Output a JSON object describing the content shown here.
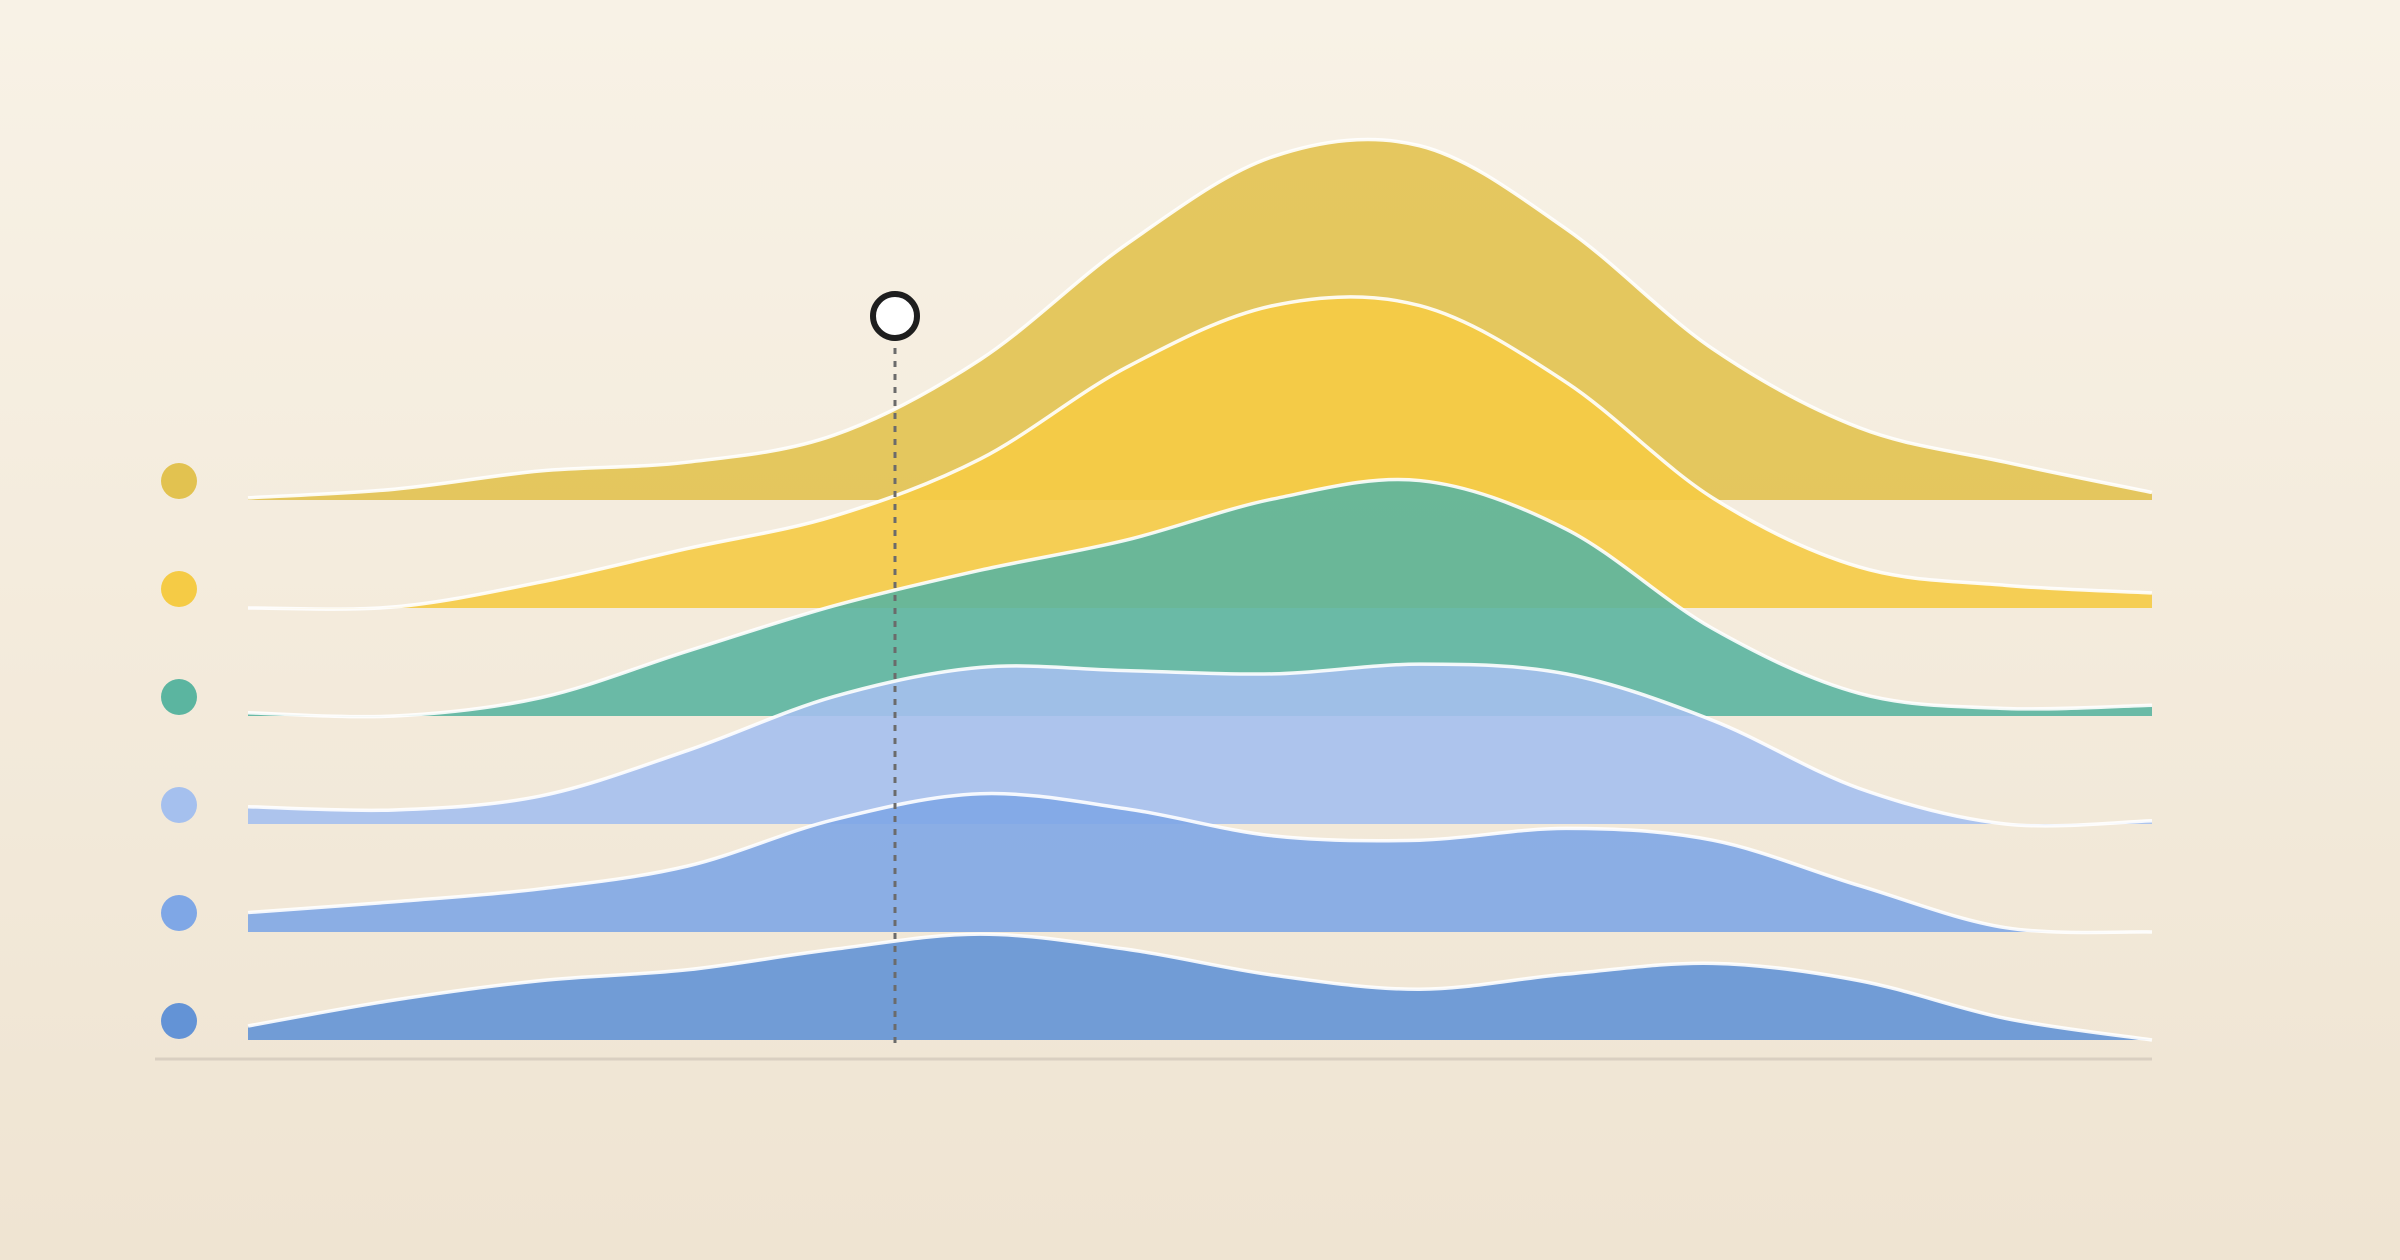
{
  "chart_data": {
    "type": "ridgeline",
    "x": [
      0,
      1,
      2,
      3,
      4,
      5,
      6,
      7,
      8,
      9,
      10,
      11,
      12,
      13
    ],
    "xlim": [
      0,
      13
    ],
    "series": [
      {
        "color": "#e2c250",
        "values": [
          0.2,
          1.0,
          2.7,
          3.5,
          6.0,
          13.0,
          23.7,
          31.8,
          32.8,
          25.1,
          14.0,
          6.7,
          3.5,
          0.7
        ]
      },
      {
        "color": "#f5cb45",
        "values": [
          0,
          0.1,
          2.4,
          5.5,
          8.5,
          13.8,
          22.3,
          28,
          28,
          20.9,
          10.2,
          3.8,
          2.1,
          1.4
        ]
      },
      {
        "color": "#5bb5a0",
        "values": [
          0.3,
          0,
          1.7,
          6,
          10.2,
          13.5,
          16.3,
          20.1,
          21.8,
          17.3,
          8.1,
          2.1,
          0.7,
          1.0
        ]
      },
      {
        "color": "#a5c0ee",
        "values": [
          1.6,
          1.3,
          2.6,
          6.8,
          11.8,
          14.5,
          14.2,
          13.9,
          14.8,
          13.9,
          9.6,
          3.3,
          0,
          0.3
        ]
      },
      {
        "color": "#7fa7e6",
        "values": [
          1.8,
          2.8,
          4,
          6.1,
          10.4,
          12.8,
          11.4,
          8.9,
          8.5,
          9.6,
          8.5,
          4.3,
          0.4,
          0
        ]
      },
      {
        "color": "#6393d6",
        "values": [
          1.3,
          3.7,
          5.5,
          6.5,
          8.4,
          9.8,
          8.4,
          6,
          4.7,
          6.1,
          7.1,
          5.5,
          2,
          0
        ]
      }
    ]
  }
}
